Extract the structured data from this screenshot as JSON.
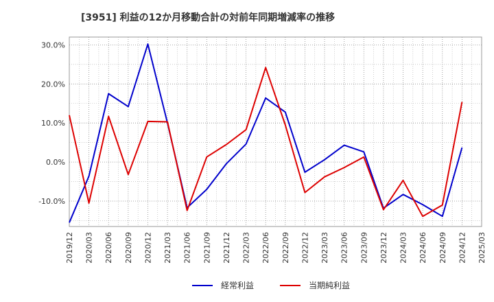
{
  "chart_data": {
    "type": "line",
    "title": "[3951]  利益の12か月移動合計の対前年同期増減率の推移",
    "xlabel": "",
    "ylabel": "",
    "ylim": [
      -16.5,
      32
    ],
    "y_ticks": [
      30,
      20,
      10,
      0,
      -10
    ],
    "y_tick_labels": [
      "30.0%",
      "20.0%",
      "10.0%",
      "0.0%",
      "-10.0%"
    ],
    "categories": [
      "2019/12",
      "2020/03",
      "2020/06",
      "2020/09",
      "2020/12",
      "2021/03",
      "2021/06",
      "2021/09",
      "2021/12",
      "2022/03",
      "2022/06",
      "2022/09",
      "2022/12",
      "2023/03",
      "2023/06",
      "2023/09",
      "2023/12",
      "2024/03",
      "2024/06",
      "2024/09",
      "2024/12",
      "2025/03"
    ],
    "grid": true,
    "legend_position": "bottom",
    "series": [
      {
        "name": "経常利益",
        "color": "#0000cc",
        "values": [
          -15.5,
          -3.6,
          17.5,
          14.2,
          30.2,
          10.0,
          -11.7,
          -7.0,
          -0.4,
          4.6,
          16.4,
          12.8,
          -2.6,
          0.6,
          4.3,
          2.6,
          -11.8,
          -8.3,
          -10.9,
          -13.9,
          3.7,
          null
        ]
      },
      {
        "name": "当期純利益",
        "color": "#dd0000",
        "values": [
          12.0,
          -10.5,
          11.7,
          -3.2,
          10.4,
          10.3,
          -12.4,
          1.3,
          4.5,
          8.3,
          24.2,
          9.5,
          -7.8,
          -3.8,
          -1.4,
          1.3,
          -12.2,
          -4.7,
          -13.9,
          -11.0,
          15.4,
          null
        ]
      }
    ]
  }
}
